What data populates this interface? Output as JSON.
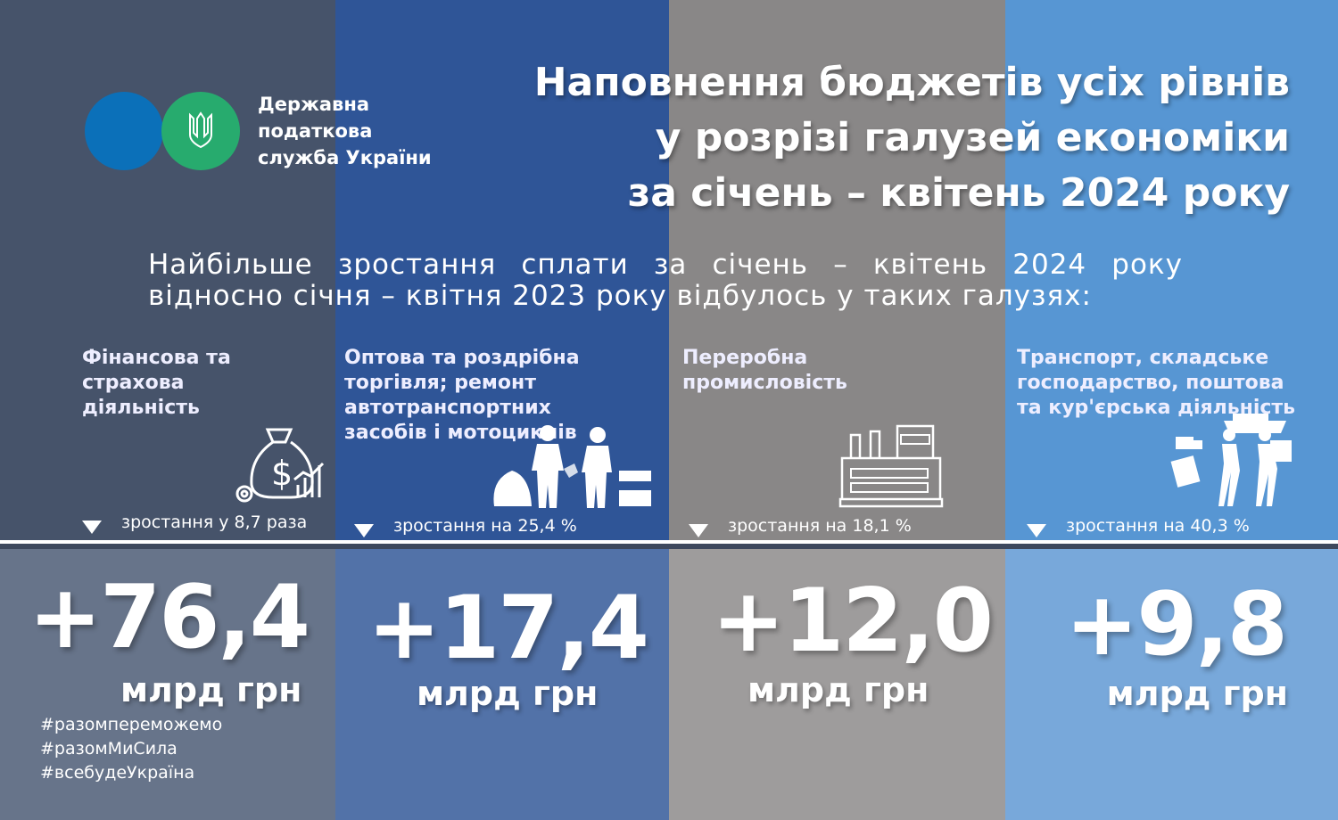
{
  "colors": {
    "col1_top": "#46536a",
    "col1_bottom": "#67748a",
    "col2_top": "#2f5597",
    "col2_bottom": "#5272a8",
    "col3_top": "#898787",
    "col3_bottom": "#9e9c9c",
    "col4_top": "#5796d3",
    "col4_bottom": "#78a8da",
    "logo_blue": "#0b70b9",
    "logo_green": "#27ab6e"
  },
  "logo": {
    "lines": [
      "Державна",
      "податкова",
      "служба України"
    ]
  },
  "title": {
    "lines": [
      "Наповнення бюджетів усіх рівнів",
      "у розрізі галузей економіки",
      "за січень – квітень 2024 року"
    ]
  },
  "subtitle": {
    "lines": [
      "Найбільше зростання сплати за січень – квітень 2024 року",
      "відносно січня – квітня 2023 року відбулось у таких галузях:"
    ]
  },
  "sectors": [
    {
      "name": "Фінансова та страхова діяльність",
      "icon": "money-bag-icon",
      "growth": "зростання у 8,7 раза",
      "value": "+76,4",
      "unit": "млрд грн"
    },
    {
      "name": "Оптова та роздрібна торгівля; ремонт автотранспортних засобів і мотоциклів",
      "icon": "trade-icon",
      "growth": "зростання на 25,4 %",
      "value": "+17,4",
      "unit": "млрд грн"
    },
    {
      "name": "Переробна промисловість",
      "icon": "factory-icon",
      "growth": "зростання на 18,1 %",
      "value": "+12,0",
      "unit": "млрд грн"
    },
    {
      "name": "Транспорт, складське господарство, поштова та кур'єрська діяльність",
      "icon": "transport-icon",
      "growth": "зростання на 40,3 %",
      "value": "+9,8",
      "unit": "млрд грн"
    }
  ],
  "hashtags": [
    "#разомпереможемо",
    "#разомМиСила",
    "#всебудеУкраїна"
  ]
}
